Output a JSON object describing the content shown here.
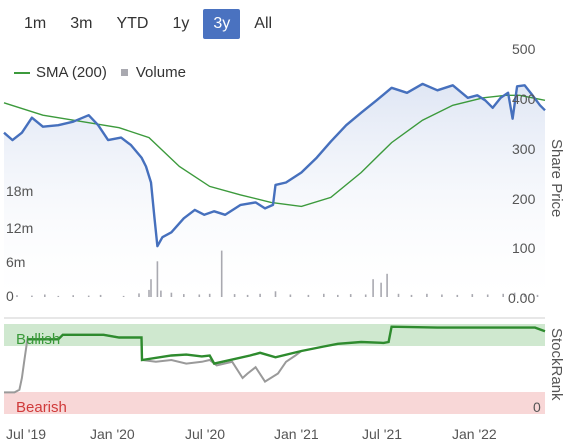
{
  "range_selector": {
    "buttons": [
      "1m",
      "3m",
      "YTD",
      "1y",
      "3y",
      "All"
    ],
    "selected": "3y"
  },
  "legend": {
    "sma_label": "SMA (200)",
    "volume_label": "Volume"
  },
  "colors": {
    "price": "#4670bd",
    "sma": "#3c9a3c",
    "volume": "#a9a9b0",
    "bullish_band": "#cfe8cf",
    "bearish_band": "#f8d7d7",
    "stockrank_green": "#2e8b2e",
    "stockrank_gray": "#9a9a9a",
    "active_button": "#4a72c0"
  },
  "chart_data": {
    "type": "line",
    "price_axis": {
      "label": "Share Price",
      "ticks": [
        "500",
        "400",
        "300",
        "200",
        "100",
        "0.00"
      ],
      "ylim": [
        0,
        500
      ]
    },
    "volume_axis": {
      "ticks": [
        "18m",
        "12m",
        "6m",
        "0"
      ],
      "ylim": [
        0,
        30
      ]
    },
    "stockrank_axis": {
      "label": "StockRank",
      "band_labels": [
        "Bullish",
        "Bearish"
      ],
      "bottom_label": "0",
      "ylim": [
        0,
        100
      ]
    },
    "x_axis": {
      "ticks": [
        "Jul '19",
        "Jan '20",
        "Jul '20",
        "Jan '21",
        "Jul '21",
        "Jan '22"
      ]
    },
    "series": [
      {
        "key": "price",
        "points": [
          [
            "2019-05-15",
            330
          ],
          [
            "2019-06-01",
            315
          ],
          [
            "2019-06-20",
            330
          ],
          [
            "2019-07-10",
            360
          ],
          [
            "2019-08-01",
            342
          ],
          [
            "2019-09-01",
            345
          ],
          [
            "2019-10-01",
            352
          ],
          [
            "2019-11-01",
            365
          ],
          [
            "2019-11-20",
            345
          ],
          [
            "2019-12-10",
            315
          ],
          [
            "2020-01-05",
            320
          ],
          [
            "2020-01-25",
            305
          ],
          [
            "2020-02-15",
            280
          ],
          [
            "2020-02-24",
            262
          ],
          [
            "2020-03-05",
            230
          ],
          [
            "2020-03-12",
            160
          ],
          [
            "2020-03-18",
            102
          ],
          [
            "2020-03-28",
            120
          ],
          [
            "2020-04-15",
            130
          ],
          [
            "2020-05-10",
            158
          ],
          [
            "2020-06-01",
            175
          ],
          [
            "2020-06-20",
            165
          ],
          [
            "2020-07-10",
            172
          ],
          [
            "2020-08-01",
            165
          ],
          [
            "2020-09-01",
            185
          ],
          [
            "2020-10-01",
            190
          ],
          [
            "2020-10-20",
            178
          ],
          [
            "2020-11-05",
            185
          ],
          [
            "2020-11-10",
            225
          ],
          [
            "2020-12-01",
            230
          ],
          [
            "2021-01-01",
            250
          ],
          [
            "2021-02-01",
            280
          ],
          [
            "2021-03-01",
            312
          ],
          [
            "2021-04-01",
            345
          ],
          [
            "2021-05-01",
            370
          ],
          [
            "2021-06-01",
            395
          ],
          [
            "2021-07-01",
            420
          ],
          [
            "2021-08-01",
            410
          ],
          [
            "2021-09-01",
            428
          ],
          [
            "2021-10-01",
            415
          ],
          [
            "2021-11-01",
            425
          ],
          [
            "2021-12-01",
            400
          ],
          [
            "2021-12-20",
            405
          ],
          [
            "2022-01-05",
            395
          ],
          [
            "2022-01-20",
            380
          ],
          [
            "2022-02-05",
            400
          ],
          [
            "2022-02-20",
            410
          ],
          [
            "2022-03-01",
            358
          ],
          [
            "2022-03-10",
            423
          ],
          [
            "2022-03-25",
            425
          ],
          [
            "2022-04-10",
            405
          ],
          [
            "2022-04-25",
            385
          ],
          [
            "2022-05-05",
            375
          ]
        ]
      },
      {
        "key": "sma",
        "name": "SMA (200)",
        "points": [
          [
            "2019-05-15",
            390
          ],
          [
            "2019-08-01",
            365
          ],
          [
            "2019-11-01",
            350
          ],
          [
            "2020-01-01",
            340
          ],
          [
            "2020-03-01",
            320
          ],
          [
            "2020-05-01",
            262
          ],
          [
            "2020-07-01",
            222
          ],
          [
            "2020-09-01",
            205
          ],
          [
            "2020-11-01",
            190
          ],
          [
            "2021-01-01",
            182
          ],
          [
            "2021-03-01",
            200
          ],
          [
            "2021-05-01",
            250
          ],
          [
            "2021-07-01",
            310
          ],
          [
            "2021-09-01",
            355
          ],
          [
            "2021-11-01",
            385
          ],
          [
            "2022-01-01",
            400
          ],
          [
            "2022-02-15",
            405
          ],
          [
            "2022-03-15",
            405
          ],
          [
            "2022-05-05",
            395
          ]
        ]
      },
      {
        "key": "volume",
        "name": "Volume",
        "points": [
          [
            "2019-06-10",
            0.5
          ],
          [
            "2019-07-10",
            0.4
          ],
          [
            "2019-08-05",
            0.7
          ],
          [
            "2019-09-01",
            0.3
          ],
          [
            "2019-10-01",
            0.5
          ],
          [
            "2019-11-01",
            0.4
          ],
          [
            "2019-11-25",
            0.6
          ],
          [
            "2020-01-10",
            0.3
          ],
          [
            "2020-02-10",
            1.0
          ],
          [
            "2020-03-01",
            2.0
          ],
          [
            "2020-03-05",
            5.0
          ],
          [
            "2020-03-18",
            10.0
          ],
          [
            "2020-03-25",
            1.8
          ],
          [
            "2020-04-15",
            1.2
          ],
          [
            "2020-05-10",
            0.8
          ],
          [
            "2020-06-10",
            0.7
          ],
          [
            "2020-07-01",
            0.9
          ],
          [
            "2020-07-25",
            13.0
          ],
          [
            "2020-08-20",
            0.8
          ],
          [
            "2020-09-15",
            0.6
          ],
          [
            "2020-10-10",
            0.9
          ],
          [
            "2020-11-10",
            1.6
          ],
          [
            "2020-12-10",
            0.7
          ],
          [
            "2021-01-15",
            0.6
          ],
          [
            "2021-02-15",
            0.9
          ],
          [
            "2021-03-15",
            0.6
          ],
          [
            "2021-04-10",
            0.8
          ],
          [
            "2021-05-10",
            0.7
          ],
          [
            "2021-05-25",
            5.0
          ],
          [
            "2021-06-10",
            4.0
          ],
          [
            "2021-06-22",
            6.5
          ],
          [
            "2021-07-15",
            0.9
          ],
          [
            "2021-08-10",
            0.6
          ],
          [
            "2021-09-10",
            0.9
          ],
          [
            "2021-10-10",
            0.7
          ],
          [
            "2021-11-10",
            0.6
          ],
          [
            "2021-12-10",
            0.8
          ],
          [
            "2022-01-10",
            0.7
          ],
          [
            "2022-02-10",
            0.9
          ],
          [
            "2022-03-05",
            1.2
          ],
          [
            "2022-03-25",
            0.8
          ],
          [
            "2022-04-20",
            0.6
          ]
        ]
      },
      {
        "key": "stockrank_gray",
        "points": [
          [
            "2019-05-15",
            24
          ],
          [
            "2019-06-05",
            24
          ],
          [
            "2019-06-15",
            27
          ],
          [
            "2019-06-20",
            40
          ],
          [
            "2019-06-25",
            60
          ],
          [
            "2019-07-01",
            83
          ],
          [
            "2019-09-01",
            83
          ],
          [
            "2019-09-10",
            88
          ],
          [
            "2019-12-01",
            88
          ],
          [
            "2020-01-01",
            85
          ],
          [
            "2020-02-15",
            85
          ],
          [
            "2020-02-16",
            60
          ],
          [
            "2020-03-15",
            58
          ],
          [
            "2020-04-15",
            60
          ],
          [
            "2020-05-15",
            56
          ],
          [
            "2020-06-15",
            58
          ],
          [
            "2020-07-01",
            60
          ],
          [
            "2020-07-15",
            54
          ],
          [
            "2020-08-15",
            58
          ],
          [
            "2020-09-05",
            40
          ],
          [
            "2020-09-15",
            45
          ],
          [
            "2020-10-01",
            52
          ],
          [
            "2020-10-20",
            36
          ],
          [
            "2020-11-15",
            45
          ],
          [
            "2020-12-01",
            58
          ],
          [
            "2020-12-20",
            65
          ],
          [
            "2021-01-01",
            70
          ]
        ]
      },
      {
        "key": "stockrank_green",
        "points": [
          [
            "2019-07-01",
            83
          ],
          [
            "2019-09-01",
            83
          ],
          [
            "2019-09-10",
            88
          ],
          [
            "2019-12-01",
            88
          ],
          [
            "2020-01-01",
            85
          ],
          [
            "2020-02-15",
            85
          ],
          [
            "2020-02-16",
            60
          ],
          [
            "2020-04-15",
            65
          ],
          [
            "2020-05-15",
            66
          ],
          [
            "2020-06-15",
            64
          ],
          [
            "2020-07-01",
            65
          ],
          [
            "2020-07-10",
            56
          ],
          [
            "2020-09-20",
            65
          ],
          [
            "2020-10-10",
            68
          ],
          [
            "2020-11-10",
            63
          ],
          [
            "2021-01-01",
            70
          ],
          [
            "2021-02-15",
            75
          ],
          [
            "2021-03-15",
            78
          ],
          [
            "2021-05-01",
            80
          ],
          [
            "2021-06-15",
            79
          ],
          [
            "2021-06-25",
            80
          ],
          [
            "2021-07-01",
            97
          ],
          [
            "2021-10-01",
            96
          ],
          [
            "2022-01-01",
            96
          ],
          [
            "2022-03-01",
            96
          ],
          [
            "2022-04-15",
            96
          ],
          [
            "2022-05-05",
            92
          ]
        ]
      }
    ]
  }
}
